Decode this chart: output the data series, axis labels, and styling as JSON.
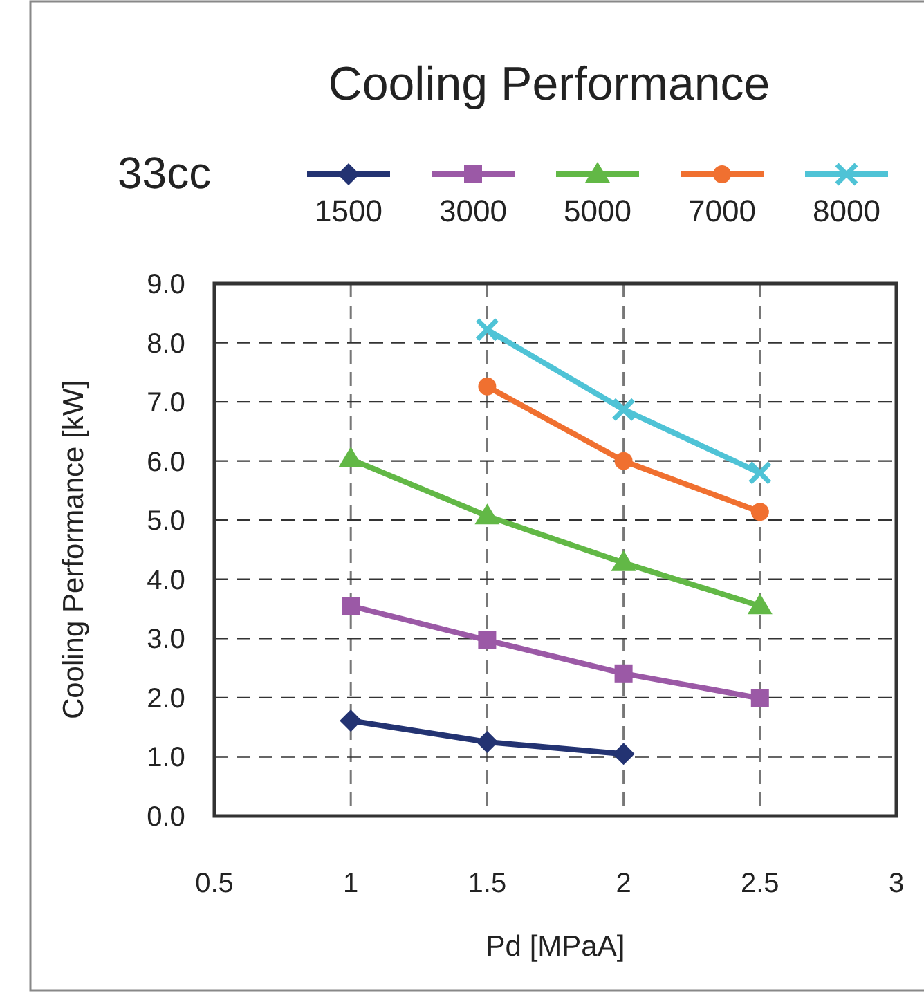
{
  "chart_data": {
    "type": "line",
    "title": "Cooling Performance",
    "legend_title": "33cc",
    "xlabel": "Pd [MPaA]",
    "ylabel": "Cooling Performance [kW]",
    "xlim": [
      0.5,
      3
    ],
    "xticks": [
      0.5,
      1,
      1.5,
      2,
      2.5,
      3
    ],
    "ylim": [
      0,
      9
    ],
    "yticks": [
      {
        "value": 0,
        "label": "0.0"
      },
      {
        "value": 1,
        "label": "1.0"
      },
      {
        "value": 2,
        "label": "2.0"
      },
      {
        "value": 3,
        "label": "3.0"
      },
      {
        "value": 4,
        "label": "4.0"
      },
      {
        "value": 5,
        "label": "5.0"
      },
      {
        "value": 6,
        "label": "6.0"
      },
      {
        "value": 7,
        "label": "7.0"
      },
      {
        "value": 8,
        "label": "8.0"
      },
      {
        "value": 9,
        "label": "9.0"
      }
    ],
    "grid": true,
    "legend": "top",
    "line_style": "solid",
    "series": [
      {
        "name": "1500",
        "color": "#233372",
        "marker": "diamond",
        "x": [
          1,
          1.5,
          2
        ],
        "values": [
          1.61,
          1.25,
          1.05
        ]
      },
      {
        "name": "3000",
        "color": "#9b59a6",
        "marker": "square",
        "x": [
          1,
          1.5,
          2,
          2.5
        ],
        "values": [
          3.55,
          2.97,
          2.41,
          1.99
        ]
      },
      {
        "name": "5000",
        "color": "#62b846",
        "marker": "triangle",
        "x": [
          1,
          1.5,
          2,
          2.5
        ],
        "values": [
          6.03,
          5.07,
          4.28,
          3.55
        ]
      },
      {
        "name": "7000",
        "color": "#f07030",
        "marker": "circle",
        "x": [
          1.5,
          2,
          2.5
        ],
        "values": [
          7.26,
          6.0,
          5.14
        ]
      },
      {
        "name": "8000",
        "color": "#4fc3d6",
        "marker": "cross",
        "x": [
          1.5,
          2,
          2.5
        ],
        "values": [
          8.22,
          6.87,
          5.8
        ]
      }
    ]
  }
}
